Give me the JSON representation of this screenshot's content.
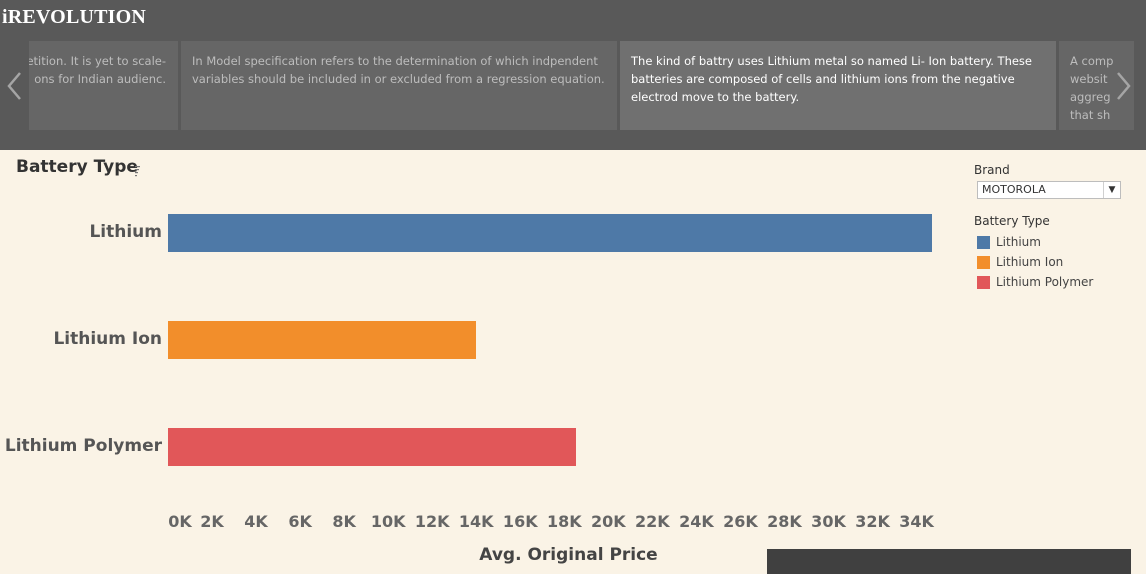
{
  "app": {
    "title": "iREVOLUTION"
  },
  "carousel": {
    "cards": [
      {
        "lines": [
          "etition.  It is yet to scale-",
          "ons for Indian audienc."
        ]
      },
      {
        "lines": [
          "In Model specification refers to the determination of which indpendent",
          "variables should be included in or excluded from a regression equation."
        ]
      },
      {
        "lines": [
          "The kind of battry uses Lithium metal so named Li- Ion battery.  These",
          "batteries are composed of cells and lithium ions from the negative",
          "electrod move to the battery."
        ]
      },
      {
        "lines": [
          "A comp",
          "websit",
          "aggreg",
          "that sh"
        ]
      }
    ],
    "prev_icon": "chevron-left-icon",
    "next_icon": "chevron-right-icon"
  },
  "chart_data": {
    "type": "bar",
    "orientation": "horizontal",
    "title": "Battery Type",
    "xlabel": "Avg. Original Price",
    "ylabel": "",
    "categories": [
      "Lithium",
      "Lithium Ion",
      "Lithium Polymer"
    ],
    "values": [
      34700,
      14000,
      18550
    ],
    "colors": [
      "#4e79a7",
      "#f28e2b",
      "#e15759"
    ],
    "xlim": [
      0,
      34700
    ],
    "xticks": [
      0,
      2000,
      4000,
      6000,
      8000,
      10000,
      12000,
      14000,
      16000,
      18000,
      20000,
      22000,
      24000,
      26000,
      28000,
      30000,
      32000,
      34000
    ],
    "xtick_labels": [
      "0K",
      "2K",
      "4K",
      "6K",
      "8K",
      "10K",
      "12K",
      "14K",
      "16K",
      "18K",
      "20K",
      "22K",
      "24K",
      "26K",
      "28K",
      "30K",
      "32K",
      "34K"
    ],
    "grid": false,
    "legend": "right"
  },
  "filter": {
    "title": "Brand",
    "selected": "MOTOROLA"
  },
  "legend": {
    "title": "Battery Type",
    "items": [
      {
        "label": "Lithium",
        "color": "#4e79a7"
      },
      {
        "label": "Lithium Ion",
        "color": "#f28e2b"
      },
      {
        "label": "Lithium Polymer",
        "color": "#e15759"
      }
    ]
  }
}
